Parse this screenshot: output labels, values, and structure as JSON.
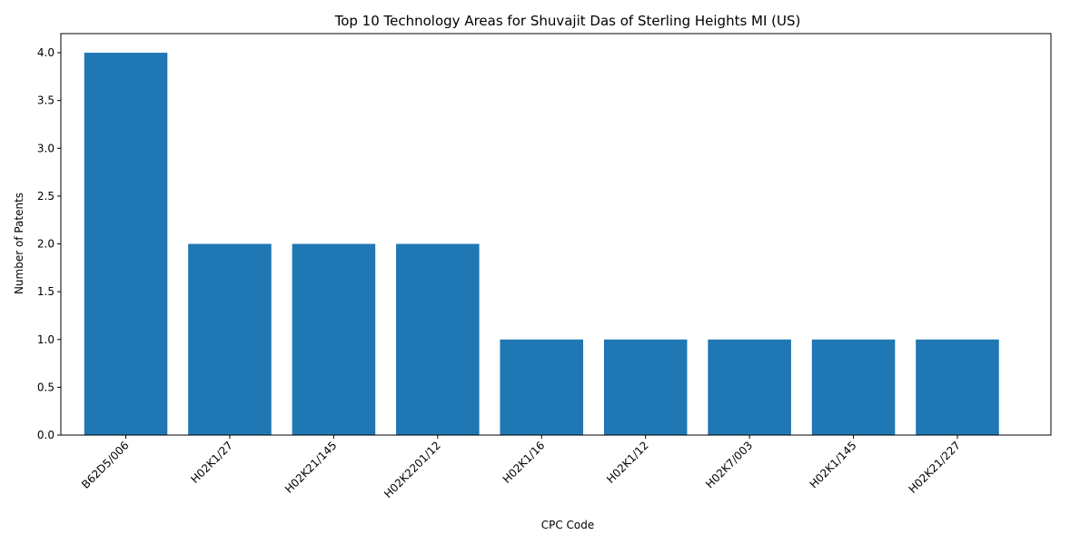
{
  "chart_data": {
    "type": "bar",
    "title": "Top 10 Technology Areas for Shuvajit Das of Sterling Heights MI (US)",
    "xlabel": "CPC Code",
    "ylabel": "Number of Patents",
    "categories": [
      "B62D5/006",
      "H02K1/27",
      "H02K21/145",
      "H02K2201/12",
      "H02K1/16",
      "H02K1/12",
      "H02K7/003",
      "H02K1/145",
      "H02K21/227"
    ],
    "values": [
      4,
      2,
      2,
      2,
      1,
      1,
      1,
      1,
      1
    ],
    "ylim": [
      0,
      4.2
    ],
    "yticks": [
      "0.0",
      "0.5",
      "1.0",
      "1.5",
      "2.0",
      "2.5",
      "3.0",
      "3.5",
      "4.0"
    ],
    "bar_color": "#1f77b4",
    "grid": false,
    "legend": "none"
  }
}
